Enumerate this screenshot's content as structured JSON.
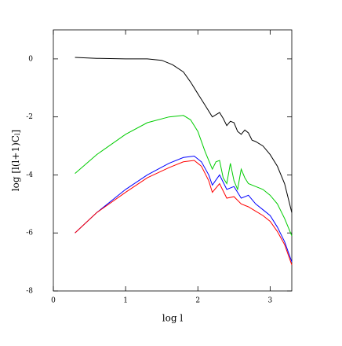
{
  "chart_data": {
    "type": "line",
    "xlabel": "log l",
    "ylabel": "log [l(l+1)C",
    "ylabel_sub": "l",
    "ylabel_end": "]",
    "xlim": [
      0,
      3.3
    ],
    "ylim": [
      -8,
      1
    ],
    "xticks": [
      0,
      1,
      2,
      3
    ],
    "yticks": [
      0,
      -2,
      -4,
      -6,
      -8
    ],
    "series": [
      {
        "color": "#000000",
        "x": [
          0.3,
          0.6,
          1.0,
          1.3,
          1.5,
          1.65,
          1.8,
          1.9,
          2.0,
          2.1,
          2.2,
          2.3,
          2.35,
          2.4,
          2.45,
          2.5,
          2.55,
          2.6,
          2.65,
          2.7,
          2.75,
          2.8,
          2.9,
          3.0,
          3.1,
          3.2,
          3.3
        ],
        "values": [
          0.05,
          0.02,
          0.0,
          0.0,
          -0.05,
          -0.2,
          -0.45,
          -0.8,
          -1.2,
          -1.6,
          -2.0,
          -1.85,
          -2.05,
          -2.3,
          -2.15,
          -2.2,
          -2.5,
          -2.6,
          -2.45,
          -2.55,
          -2.8,
          -2.85,
          -3.0,
          -3.3,
          -3.7,
          -4.3,
          -5.3
        ]
      },
      {
        "color": "#00cc00",
        "x": [
          0.3,
          0.6,
          1.0,
          1.3,
          1.6,
          1.8,
          1.9,
          2.0,
          2.1,
          2.2,
          2.25,
          2.3,
          2.35,
          2.4,
          2.45,
          2.5,
          2.55,
          2.6,
          2.65,
          2.7,
          2.8,
          2.9,
          3.0,
          3.1,
          3.2,
          3.3
        ],
        "values": [
          -3.95,
          -3.3,
          -2.6,
          -2.2,
          -2.0,
          -1.95,
          -2.1,
          -2.5,
          -3.2,
          -3.8,
          -3.55,
          -3.5,
          -4.1,
          -4.3,
          -3.6,
          -4.2,
          -4.5,
          -3.8,
          -4.1,
          -4.3,
          -4.4,
          -4.5,
          -4.7,
          -5.0,
          -5.5,
          -6.1
        ]
      },
      {
        "color": "#0000ff",
        "x": [
          0.3,
          0.6,
          1.0,
          1.3,
          1.6,
          1.8,
          1.95,
          2.05,
          2.15,
          2.2,
          2.3,
          2.4,
          2.5,
          2.6,
          2.7,
          2.8,
          2.9,
          3.0,
          3.1,
          3.2,
          3.3
        ],
        "values": [
          -6.0,
          -5.3,
          -4.5,
          -4.0,
          -3.6,
          -3.4,
          -3.35,
          -3.55,
          -4.0,
          -4.35,
          -4.0,
          -4.5,
          -4.4,
          -4.8,
          -4.7,
          -5.0,
          -5.2,
          -5.4,
          -5.8,
          -6.3,
          -7.0
        ]
      },
      {
        "color": "#ff0000",
        "x": [
          0.3,
          0.6,
          1.0,
          1.3,
          1.6,
          1.8,
          1.95,
          2.05,
          2.15,
          2.2,
          2.3,
          2.4,
          2.5,
          2.6,
          2.7,
          2.8,
          2.9,
          3.0,
          3.1,
          3.2,
          3.3
        ],
        "values": [
          -6.0,
          -5.3,
          -4.6,
          -4.1,
          -3.75,
          -3.55,
          -3.5,
          -3.7,
          -4.2,
          -4.6,
          -4.3,
          -4.8,
          -4.75,
          -5.0,
          -5.1,
          -5.25,
          -5.4,
          -5.6,
          -5.95,
          -6.4,
          -7.1
        ]
      }
    ]
  }
}
